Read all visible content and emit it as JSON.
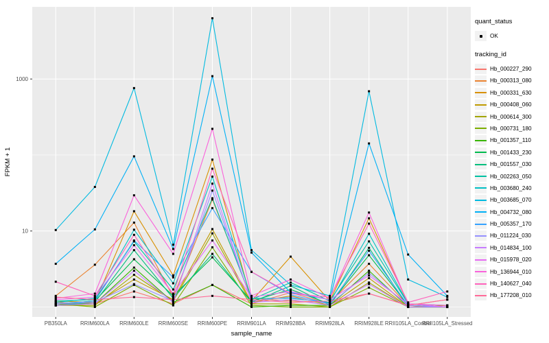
{
  "figure": {
    "background": "#FFFFFF",
    "panel_background": "#EBEBEB",
    "grid_color": "#FFFFFF",
    "tick_label_color": "#4D4D4D",
    "text_color": "#000000",
    "point_color": "#000000"
  },
  "legend": {
    "quant_status": {
      "title": "quant_status",
      "items": [
        {
          "label": "OK",
          "marker": "black-point",
          "color": "#000000"
        }
      ]
    },
    "tracking_id": {
      "title": "tracking_id"
    }
  },
  "chart_data": {
    "type": "line",
    "title": "",
    "xlabel": "sample_name",
    "ylabel": "FPKM + 1",
    "y_scale": "log10",
    "grid": true,
    "legend_position": "right",
    "y_ticks": [
      {
        "label": "10",
        "value": 10
      },
      {
        "label": "1000",
        "value": 1000
      }
    ],
    "y_minor_gridlines": [
      1,
      100
    ],
    "ylim": [
      0.74,
      8900
    ],
    "point_marker": "small-black-square",
    "categories": [
      "PB350LA",
      "RRIM600LA",
      "RRIM600LE",
      "RRIM600SE",
      "RRIM600PE",
      "RRIM901LA",
      "RRIM928BA",
      "RRIM928LA",
      "RRIM928LE",
      "RRII105LA_Control",
      "RRII105LA_Stressed"
    ],
    "series": [
      {
        "name": "Hb_000227_290",
        "color": "#F8766D",
        "values": [
          1.15,
          1.1,
          1.6,
          1.1,
          1.95,
          1.1,
          1.55,
          1.1,
          1.5,
          1.05,
          1.25
        ]
      },
      {
        "name": "Hb_000313_080",
        "color": "#EA8331",
        "values": [
          1.4,
          3.6,
          12.9,
          1.35,
          26,
          1.3,
          1.2,
          1.15,
          3.7,
          1.05,
          1.0
        ]
      },
      {
        "name": "Hb_000331_630",
        "color": "#D89000",
        "values": [
          1.2,
          1.15,
          18.2,
          2.6,
          87,
          1.2,
          4.6,
          1.2,
          14.7,
          1.1,
          1.0
        ]
      },
      {
        "name": "Hb_000408_060",
        "color": "#C09B00",
        "values": [
          1.1,
          1.1,
          2.3,
          1.25,
          10.6,
          1.15,
          1.4,
          1.05,
          2.4,
          1.0,
          1.05
        ]
      },
      {
        "name": "Hb_000614_300",
        "color": "#A3A500",
        "values": [
          1.05,
          1.05,
          2.65,
          1.2,
          9.3,
          1.1,
          1.1,
          1.0,
          2.1,
          1.0,
          1.0
        ]
      },
      {
        "name": "Hb_000731_180",
        "color": "#7CAE00",
        "values": [
          1.1,
          1.0,
          1.95,
          1.05,
          6.1,
          1.05,
          1.0,
          1.0,
          1.8,
          1.0,
          1.0
        ]
      },
      {
        "name": "Hb_001357_110",
        "color": "#39B600",
        "values": [
          1.05,
          1.1,
          3.3,
          1.15,
          1.95,
          1.0,
          1.05,
          1.05,
          3.0,
          1.0,
          1.0
        ]
      },
      {
        "name": "Hb_001433_230",
        "color": "#00BB4E",
        "values": [
          1.1,
          1.2,
          4.25,
          1.4,
          4.5,
          1.2,
          1.7,
          1.1,
          4.8,
          1.05,
          1.0
        ]
      },
      {
        "name": "Hb_001557_030",
        "color": "#00BF7D",
        "values": [
          1.05,
          1.15,
          5.6,
          1.3,
          5.0,
          1.15,
          1.9,
          1.05,
          6.0,
          1.0,
          1.0
        ]
      },
      {
        "name": "Hb_002263_050",
        "color": "#00C1A3",
        "values": [
          1.2,
          1.25,
          7.3,
          1.7,
          27,
          1.25,
          2.1,
          1.2,
          7.3,
          1.1,
          1.05
        ]
      },
      {
        "name": "Hb_003680_240",
        "color": "#00BFC4",
        "values": [
          1.15,
          1.3,
          10.4,
          2.05,
          52,
          1.3,
          1.3,
          1.15,
          9.2,
          1.1,
          1.0
        ]
      },
      {
        "name": "Hb_003685_070",
        "color": "#00BAE0",
        "values": [
          10.3,
          38,
          760,
          6.6,
          6300,
          5.6,
          1.95,
          1.4,
          690,
          2.3,
          1.35
        ]
      },
      {
        "name": "Hb_004732_080",
        "color": "#00B0F6",
        "values": [
          3.7,
          10.5,
          96,
          5.8,
          1090,
          5.2,
          1.55,
          1.25,
          142,
          4.9,
          1.4
        ]
      },
      {
        "name": "Hb_005357_170",
        "color": "#35A2FF",
        "values": [
          1.1,
          1.2,
          7.5,
          2.45,
          20,
          2.9,
          1.45,
          1.1,
          5.5,
          1.05,
          1.0
        ]
      },
      {
        "name": "Hb_011224_030",
        "color": "#9590FF",
        "values": [
          1.1,
          1.15,
          2.0,
          1.2,
          34,
          1.2,
          1.35,
          1.1,
          2.8,
          1.05,
          1.0
        ]
      },
      {
        "name": "Hb_014834_100",
        "color": "#C77CFF",
        "values": [
          1.05,
          1.1,
          3.0,
          1.15,
          42,
          1.15,
          1.25,
          1.05,
          2.0,
          1.0,
          1.0
        ]
      },
      {
        "name": "Hb_015978_020",
        "color": "#E76BF3",
        "values": [
          1.25,
          1.35,
          6.5,
          1.5,
          7.5,
          1.35,
          1.6,
          1.25,
          2.6,
          1.1,
          1.0
        ]
      },
      {
        "name": "Hb_136944_010",
        "color": "#FA62DB",
        "values": [
          1.3,
          1.5,
          29.5,
          5.0,
          221,
          1.4,
          2.3,
          1.3,
          17.5,
          1.1,
          1.05
        ]
      },
      {
        "name": "Hb_140627_040",
        "color": "#FF62BC",
        "values": [
          2.15,
          1.4,
          8.9,
          1.45,
          66,
          2.9,
          1.5,
          1.35,
          12.5,
          1.15,
          1.6
        ]
      },
      {
        "name": "Hb_177208_010",
        "color": "#FF6A98",
        "values": [
          1.35,
          1.25,
          1.35,
          1.25,
          1.4,
          1.25,
          1.15,
          1.2,
          1.5,
          1.05,
          1.25
        ]
      }
    ]
  }
}
